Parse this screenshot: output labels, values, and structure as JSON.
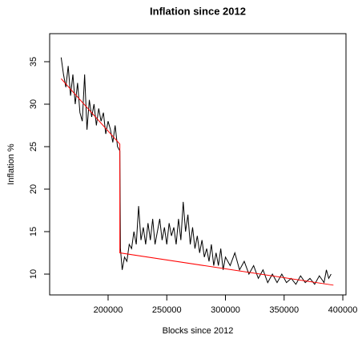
{
  "chart_data": {
    "type": "line",
    "title": "Inflation since 2012",
    "x_label": "Blocks since 2012",
    "y_label": "Inflation %",
    "xlim": [
      150200,
      402700
    ],
    "ylim": [
      7.55,
      38.3
    ],
    "xticks": [
      200000,
      250000,
      300000,
      350000,
      400000
    ],
    "yticks": [
      10,
      15,
      20,
      25,
      30,
      35
    ],
    "series": [
      {
        "color": "#000000",
        "x": [
          160000,
          162000,
          164000,
          166000,
          168000,
          170000,
          172000,
          174000,
          176000,
          178000,
          180000,
          182000,
          184000,
          186000,
          188000,
          190000,
          192000,
          194000,
          196000,
          198000,
          200000,
          202000,
          204000,
          206000,
          208000,
          210000,
          210500,
          212000,
          214000,
          216000,
          218000,
          220000,
          222000,
          224000,
          226000,
          228000,
          230000,
          232000,
          234000,
          236000,
          238000,
          240000,
          242000,
          244000,
          246000,
          248000,
          250000,
          252000,
          254000,
          256000,
          258000,
          260000,
          262000,
          264000,
          266000,
          268000,
          270000,
          272000,
          274000,
          276000,
          278000,
          280000,
          282000,
          284000,
          286000,
          288000,
          290000,
          292000,
          294000,
          296000,
          298000,
          300000,
          304000,
          308000,
          312000,
          316000,
          320000,
          324000,
          328000,
          332000,
          336000,
          340000,
          344000,
          348000,
          352000,
          356000,
          360000,
          364000,
          368000,
          372000,
          376000,
          380000,
          384000,
          386000,
          388000,
          390000
        ],
        "values": [
          35.5,
          33.5,
          32.0,
          34.5,
          31.0,
          33.5,
          30.0,
          32.5,
          29.0,
          28.0,
          33.5,
          27.0,
          30.5,
          28.5,
          30.0,
          27.5,
          29.5,
          28.0,
          29.0,
          26.5,
          28.0,
          27.0,
          25.5,
          27.5,
          25.0,
          24.5,
          13.0,
          10.5,
          12.0,
          11.5,
          13.5,
          13.0,
          15.0,
          13.5,
          18.0,
          14.0,
          15.5,
          13.5,
          16.0,
          14.0,
          16.5,
          13.5,
          15.0,
          16.5,
          14.0,
          15.5,
          13.5,
          16.0,
          14.5,
          15.5,
          13.5,
          16.5,
          14.0,
          18.5,
          15.0,
          17.0,
          13.5,
          15.5,
          13.0,
          14.5,
          12.5,
          14.0,
          12.0,
          13.0,
          11.5,
          13.5,
          11.0,
          12.5,
          11.0,
          13.0,
          10.5,
          12.0,
          11.0,
          12.5,
          10.5,
          11.5,
          10.0,
          11.0,
          9.5,
          10.5,
          9.0,
          10.0,
          9.0,
          10.0,
          9.0,
          9.5,
          8.8,
          9.8,
          9.0,
          9.5,
          8.8,
          9.8,
          9.0,
          10.5,
          9.5,
          10.0
        ]
      },
      {
        "color": "#ff0000",
        "x": [
          160000,
          210000,
          210000,
          392000
        ],
        "values": [
          33.0,
          25.3,
          12.5,
          8.7
        ]
      }
    ]
  }
}
